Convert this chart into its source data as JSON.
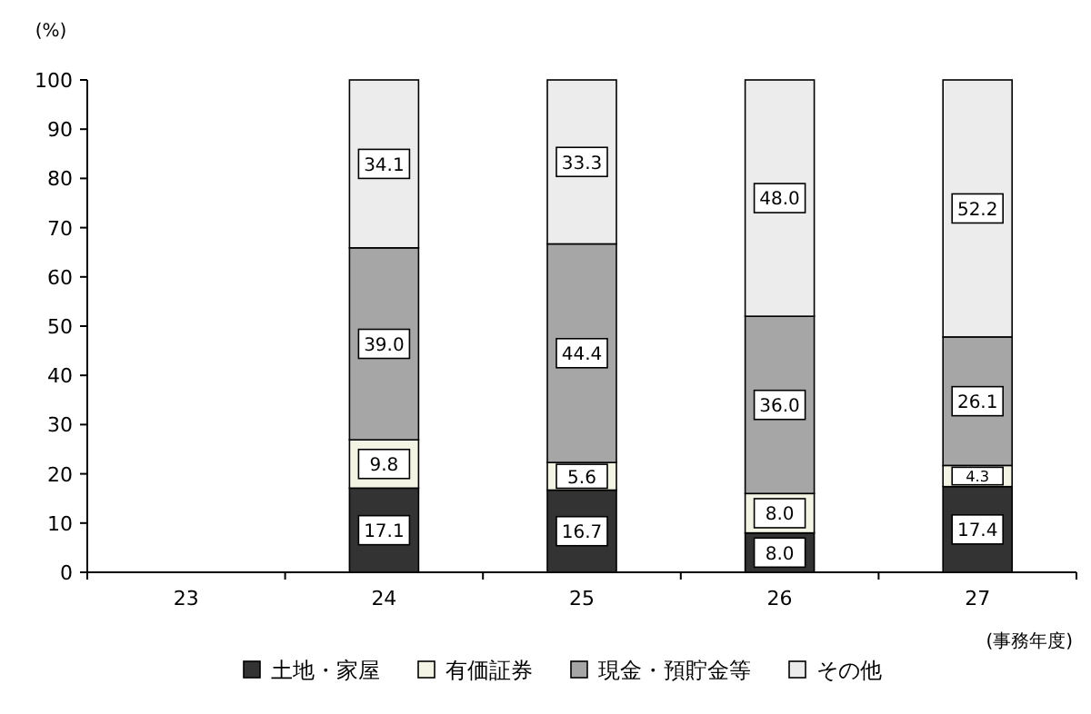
{
  "chart_data": {
    "type": "bar",
    "stacked": true,
    "ylabel": "(%)",
    "xlabel": "(事務年度)",
    "categories": [
      "23",
      "24",
      "25",
      "26",
      "27"
    ],
    "ylim": [
      0,
      100
    ],
    "yticks": [
      0,
      10,
      20,
      30,
      40,
      50,
      60,
      70,
      80,
      90,
      100
    ],
    "legend": "bottom",
    "grid": false,
    "series": [
      {
        "name": "土地・家屋",
        "color": "#333333",
        "values": [
          null,
          17.1,
          16.7,
          8.0,
          17.4
        ],
        "value_labels": [
          null,
          "17.1",
          "16.7",
          "8.0",
          "17.4"
        ]
      },
      {
        "name": "有価証券",
        "color": "#f4f4e4",
        "values": [
          null,
          9.8,
          5.6,
          8.0,
          4.3
        ],
        "value_labels": [
          null,
          "9.8",
          "5.6",
          "8.0",
          "4.3"
        ]
      },
      {
        "name": "現金・預貯金等",
        "color": "#a6a6a6",
        "values": [
          null,
          39.0,
          44.4,
          36.0,
          26.1
        ],
        "value_labels": [
          null,
          "39.0",
          "44.4",
          "36.0",
          "26.1"
        ]
      },
      {
        "name": "その他",
        "color": "#ececec",
        "values": [
          null,
          34.1,
          33.3,
          48.0,
          52.2
        ],
        "value_labels": [
          null,
          "34.1",
          "33.3",
          "48.0",
          "52.2"
        ]
      }
    ]
  }
}
